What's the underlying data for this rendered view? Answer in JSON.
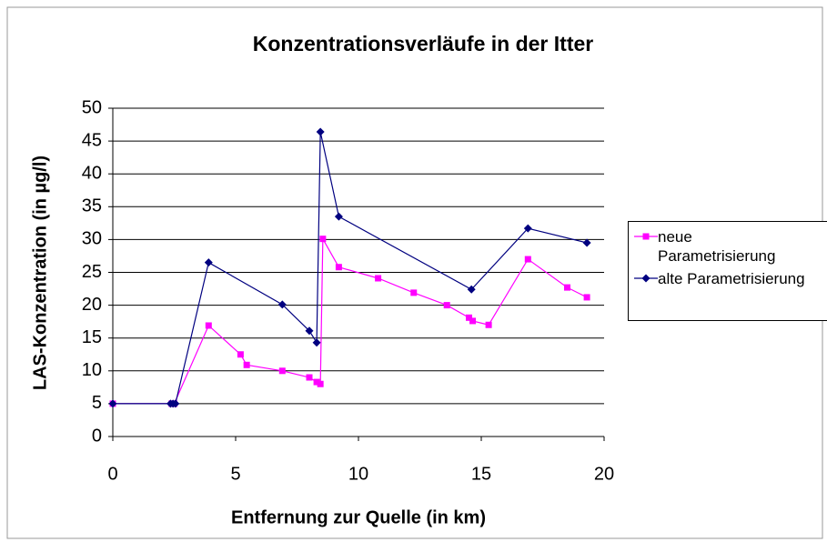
{
  "chart_data": {
    "type": "line",
    "title": "Konzentrationsverläufe in der Itter",
    "x_label": "Entfernung zur Quelle (in km)",
    "y_label": "LAS-Konzentration (in µg/l)",
    "xlim": [
      0,
      20
    ],
    "xticks": [
      0,
      5,
      10,
      15,
      20
    ],
    "ylim": [
      0,
      50
    ],
    "yticks": [
      0,
      5,
      10,
      15,
      20,
      25,
      30,
      35,
      40,
      45,
      50
    ],
    "grid": true,
    "legend": "right",
    "series": [
      {
        "name": "neue Parametrisierung",
        "color": "#ff00ff",
        "marker": "square",
        "x": [
          0,
          2.4,
          2.5,
          3.9,
          5.2,
          5.45,
          6.9,
          8.0,
          8.3,
          8.45,
          8.55,
          9.2,
          10.8,
          12.25,
          13.6,
          14.5,
          14.65,
          15.3,
          16.9,
          18.5,
          19.3
        ],
        "values": [
          5,
          5,
          5,
          16.9,
          12.5,
          10.9,
          10,
          9,
          8.3,
          8,
          30.1,
          25.8,
          24.1,
          21.9,
          20,
          18.1,
          17.6,
          17,
          27,
          22.7,
          21.2
        ]
      },
      {
        "name": "alte Parametrisierung",
        "color": "#000080",
        "marker": "diamond",
        "x": [
          0,
          2.35,
          2.45,
          2.55,
          3.9,
          6.9,
          8.0,
          8.3,
          8.45,
          9.2,
          14.6,
          16.9,
          19.3
        ],
        "values": [
          5,
          5,
          5,
          5,
          26.5,
          20.1,
          16.1,
          14.3,
          46.4,
          33.5,
          22.4,
          31.7,
          29.5
        ]
      }
    ]
  }
}
